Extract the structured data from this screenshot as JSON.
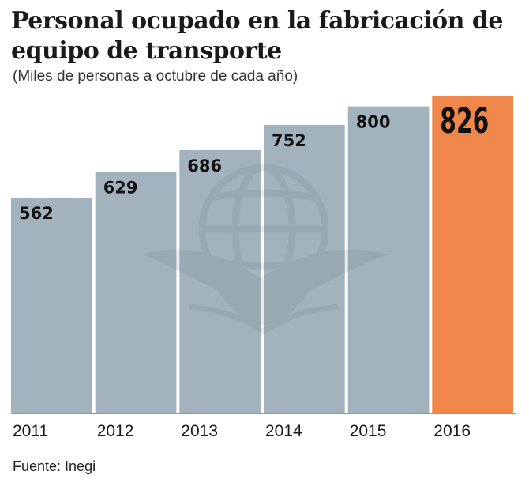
{
  "title": "Personal ocupado en la fabricación de equipo de transporte",
  "subtitle": "(Miles de personas a octubre de cada año)",
  "source": "Fuente: Inegi",
  "colors": {
    "bar": "#a3b3bd",
    "highlight": "#f0874a",
    "baseline": "#8e9aa2"
  },
  "watermark_icon": "eagle-globe-icon",
  "chart_data": {
    "type": "bar",
    "title": "Personal ocupado en la fabricación de equipo de transporte",
    "subtitle": "(Miles de personas a octubre de cada año)",
    "categories": [
      "2011",
      "2012",
      "2013",
      "2014",
      "2015",
      "2016"
    ],
    "values": [
      562,
      629,
      686,
      752,
      800,
      826
    ],
    "labels": [
      "562",
      "629",
      "686",
      "752",
      "800",
      "826"
    ],
    "highlight_index": 5,
    "xlabel": "",
    "ylabel": "",
    "ylim": [
      0,
      826
    ],
    "grid": false
  }
}
